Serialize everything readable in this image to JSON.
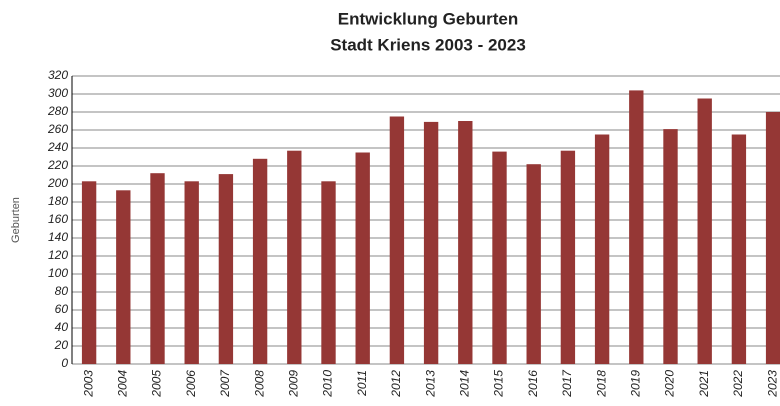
{
  "chart_data": {
    "type": "bar",
    "title": "Entwicklung Geburten",
    "subtitle": "Stadt Kriens 2003 - 2023",
    "y_label": "Geburten",
    "categories": [
      "2003",
      "2004",
      "2005",
      "2006",
      "2007",
      "2008",
      "2009",
      "2010",
      "2011",
      "2012",
      "2013",
      "2014",
      "2015",
      "2016",
      "2017",
      "2018",
      "2019",
      "2020",
      "2021",
      "2022",
      "2023"
    ],
    "values": [
      203,
      193,
      212,
      203,
      211,
      228,
      237,
      203,
      235,
      275,
      269,
      270,
      236,
      222,
      237,
      255,
      304,
      261,
      295,
      255,
      280
    ],
    "color": "#953735",
    "ylim": [
      0,
      320
    ],
    "yticks": [
      0,
      20,
      40,
      60,
      80,
      100,
      120,
      140,
      160,
      180,
      200,
      220,
      240,
      260,
      280,
      300,
      320
    ],
    "grid": true
  }
}
